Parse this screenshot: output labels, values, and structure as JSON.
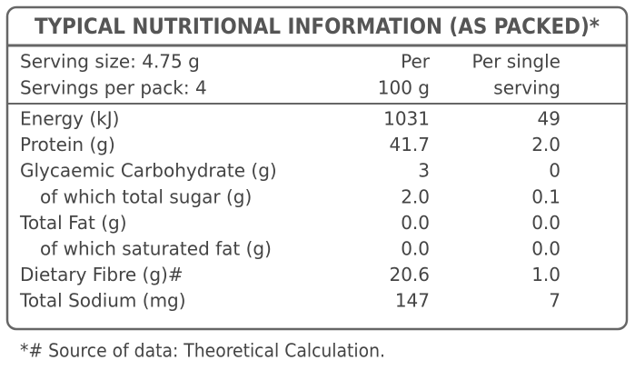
{
  "title": "TYPICAL NUTRITIONAL INFORMATION (AS PACKED)*",
  "header": {
    "rows": [
      [
        "Serving size: 4.75 g",
        "Per",
        "Per single"
      ],
      [
        "Servings per pack: 4",
        "100 g",
        "serving"
      ]
    ]
  },
  "table": {
    "rows": [
      [
        "Energy (kJ)",
        "1031",
        "49"
      ],
      [
        "Protein (g)",
        "41.7",
        "2.0"
      ],
      [
        "Glycaemic Carbohydrate (g)",
        "3",
        "0"
      ],
      [
        "of which total sugar (g)",
        "2.0",
        "0.1"
      ],
      [
        "Total Fat (g)",
        "0.0",
        "0.0"
      ],
      [
        "of which saturated fat (g)",
        "0.0",
        "0.0"
      ],
      [
        "Dietary Fibre (g)#",
        "20.6",
        "1.0"
      ],
      [
        "Total Sodium (mg)",
        "147",
        "7"
      ]
    ]
  },
  "footnote": "*# Source of data: Theoretical Calculation."
}
